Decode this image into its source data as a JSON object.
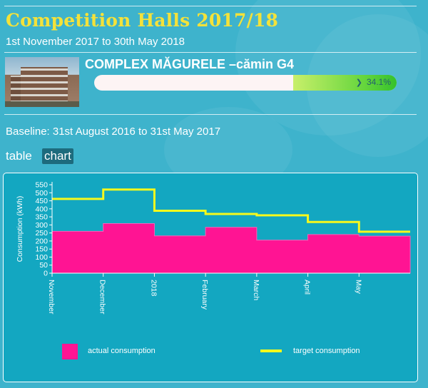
{
  "header": {
    "title": "Competition Halls 2017/18",
    "period": "1st November 2017 to 30th May 2018"
  },
  "building": {
    "name": "COMPLEX MĂGURELE –cămin G4",
    "progress_percent": 34.1,
    "progress_label": "34.1%",
    "progress_icon": "chevron-down-icon"
  },
  "baseline": "Baseline: 31st August 2016 to 31st May 2017",
  "tabs": {
    "table": "table",
    "chart": "chart",
    "active": "chart"
  },
  "colors": {
    "background": "#3eb3cc",
    "title": "#f4e23a",
    "chart_bg": "#13a7c1",
    "actual": "#ff1493",
    "target": "#f6f91c"
  },
  "chart_data": {
    "type": "area",
    "ylabel": "Consumption (kWh)",
    "ylim": [
      0,
      550
    ],
    "yticks": [
      0,
      50,
      100,
      150,
      200,
      250,
      300,
      350,
      400,
      450,
      500,
      550
    ],
    "xlim": [
      0,
      7
    ],
    "xticks": [
      {
        "label": "November",
        "x": 0
      },
      {
        "label": "December",
        "x": 1
      },
      {
        "label": "2018",
        "x": 2
      },
      {
        "label": "February",
        "x": 3
      },
      {
        "label": "March",
        "x": 4
      },
      {
        "label": "April",
        "x": 5
      },
      {
        "label": "May",
        "x": 6
      }
    ],
    "grid": false,
    "legend_position": "bottom",
    "series": [
      {
        "name": "actual consumption",
        "style": "area",
        "steps": [
          {
            "x0": 0,
            "x1": 1,
            "value": 260
          },
          {
            "x0": 1,
            "x1": 2,
            "value": 308
          },
          {
            "x0": 2,
            "x1": 3,
            "value": 232
          },
          {
            "x0": 3,
            "x1": 4,
            "value": 285
          },
          {
            "x0": 4,
            "x1": 5,
            "value": 205
          },
          {
            "x0": 5,
            "x1": 6,
            "value": 240
          },
          {
            "x0": 6,
            "x1": 7,
            "value": 230
          }
        ]
      },
      {
        "name": "target consumption",
        "style": "line",
        "steps": [
          {
            "x0": 0,
            "x1": 1,
            "value": 462
          },
          {
            "x0": 1,
            "x1": 2,
            "value": 520
          },
          {
            "x0": 2,
            "x1": 3,
            "value": 388
          },
          {
            "x0": 3,
            "x1": 4,
            "value": 368
          },
          {
            "x0": 4,
            "x1": 5,
            "value": 360
          },
          {
            "x0": 5,
            "x1": 6,
            "value": 318
          },
          {
            "x0": 6,
            "x1": 7,
            "value": 258
          }
        ]
      }
    ]
  }
}
